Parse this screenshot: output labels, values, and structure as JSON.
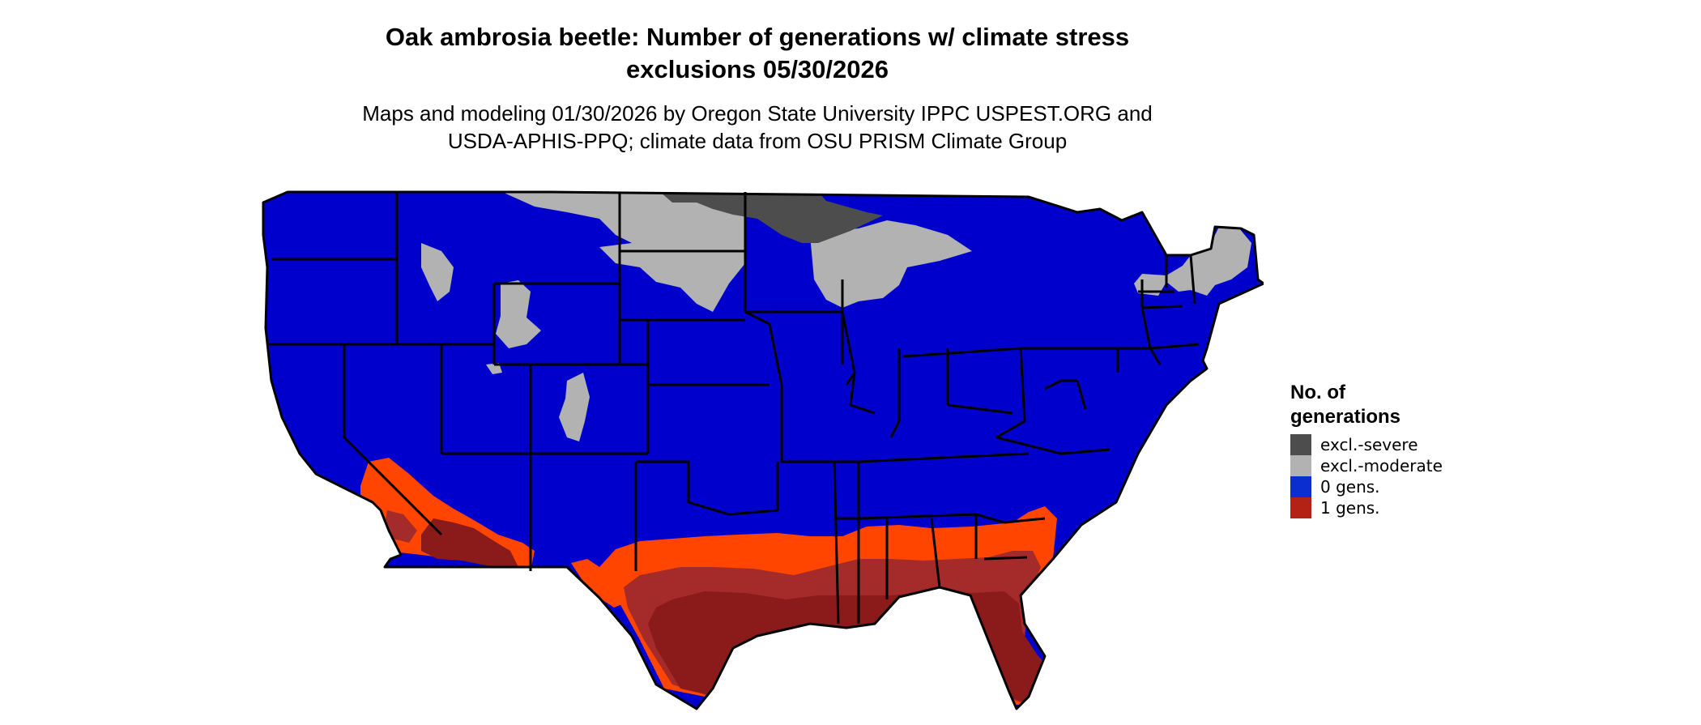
{
  "title": {
    "line1": "Oak ambrosia beetle: Number of generations w/ climate stress",
    "line2": "exclusions 05/30/2026"
  },
  "subtitle": {
    "line1": "Maps and modeling 01/30/2026 by Oregon State University IPPC USPEST.ORG and",
    "line2": "USDA-APHIS-PPQ; climate data from OSU PRISM Climate Group"
  },
  "legend": {
    "title_line1": "No. of",
    "title_line2": "generations",
    "items": [
      {
        "label": "excl.-severe",
        "color": "#4d4d4d"
      },
      {
        "label": "excl.-moderate",
        "color": "#b2b2b2"
      },
      {
        "label": "0 gens.",
        "color": "#0a2ecf"
      },
      {
        "label": "1 gens.",
        "color": "#b22316"
      }
    ]
  },
  "map_colors": {
    "zero_gens_region": "#0000cc",
    "one_gen_core": "#8b1a1a",
    "one_gen_fringe_orange": "#ff4500",
    "one_gen_mid": "#a52a2a",
    "state_borders": "#000000"
  }
}
